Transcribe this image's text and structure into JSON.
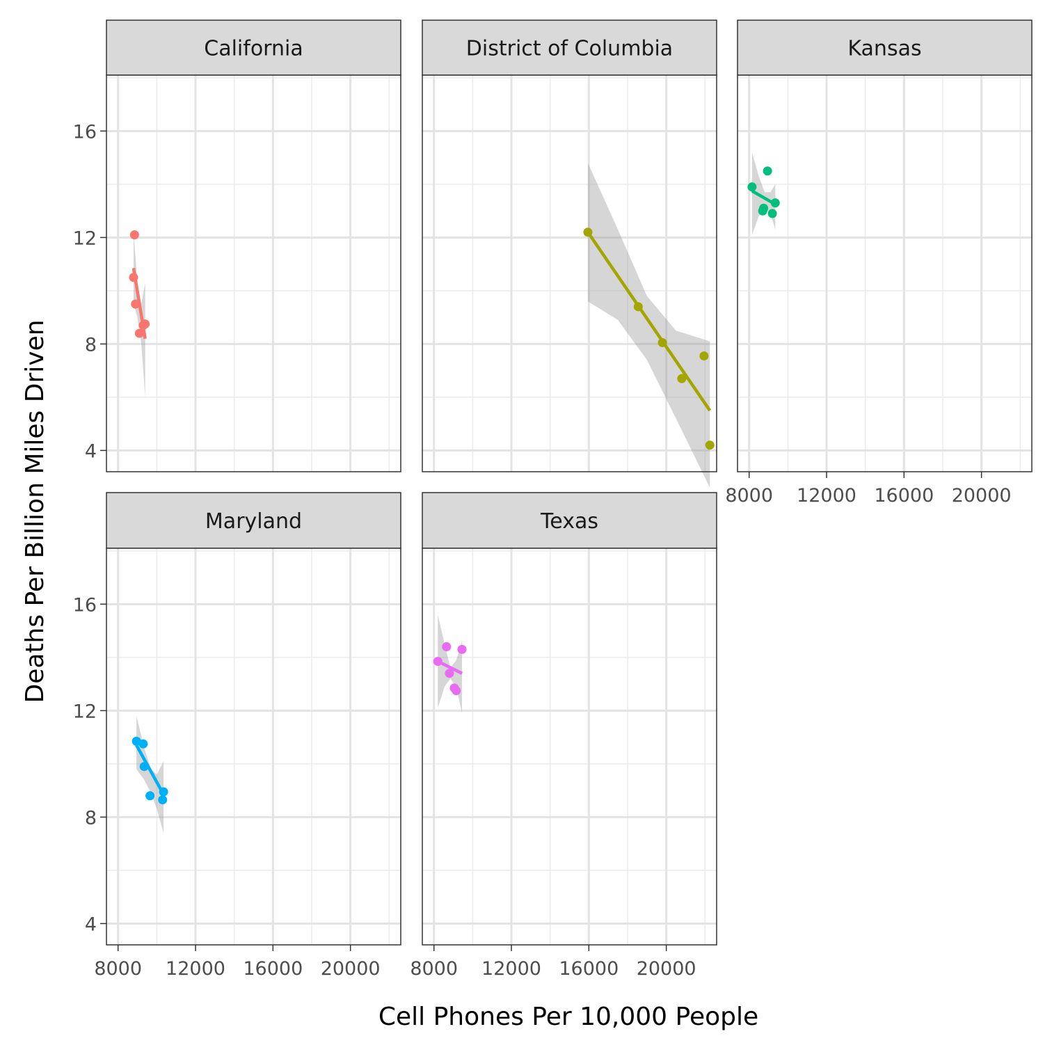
{
  "chart_data": {
    "type": "scatter",
    "xlabel": "Cell Phones Per 10,000 People",
    "ylabel": "Deaths Per Billion Miles Driven",
    "xlim": [
      7400,
      22600
    ],
    "ylim": [
      3.2,
      18.1
    ],
    "x_ticks": [
      8000,
      12000,
      16000,
      20000
    ],
    "x_tick_labels": [
      "8000",
      "12000",
      "16000",
      "20000"
    ],
    "y_ticks": [
      4,
      8,
      12,
      16
    ],
    "y_tick_labels": [
      "4",
      "8",
      "12",
      "16"
    ],
    "grid": true,
    "legend": "none",
    "facets": [
      {
        "name": "California",
        "color": "#F8766D",
        "points": [
          [
            8850,
            12.1
          ],
          [
            8800,
            10.5
          ],
          [
            8900,
            9.5
          ],
          [
            9100,
            8.4
          ],
          [
            9300,
            8.7
          ],
          [
            9400,
            8.75
          ]
        ],
        "fit": [
          [
            8800,
            10.85
          ],
          [
            9400,
            8.2
          ]
        ],
        "band": {
          "x": [
            8800,
            9000,
            9200,
            9400
          ],
          "lower": [
            9.5,
            9.0,
            8.0,
            6.0
          ],
          "upper": [
            12.2,
            10.3,
            9.5,
            10.3
          ]
        }
      },
      {
        "name": "District of Columbia",
        "color": "#A3A500",
        "points": [
          [
            15950,
            12.2
          ],
          [
            18550,
            9.4
          ],
          [
            19800,
            8.05
          ],
          [
            20800,
            6.7
          ],
          [
            21950,
            7.55
          ],
          [
            22250,
            4.2
          ]
        ],
        "fit": [
          [
            15950,
            12.2
          ],
          [
            22250,
            5.5
          ]
        ],
        "band": {
          "x": [
            15950,
            17500,
            19000,
            20500,
            22250
          ],
          "lower": [
            9.6,
            8.9,
            7.4,
            5.2,
            2.6
          ],
          "upper": [
            14.8,
            12.3,
            9.8,
            8.5,
            8.1
          ]
        }
      },
      {
        "name": "Kansas",
        "color": "#00BF7D",
        "points": [
          [
            8950,
            14.5
          ],
          [
            8150,
            13.9
          ],
          [
            9350,
            13.3
          ],
          [
            8750,
            13.1
          ],
          [
            8700,
            13.0
          ],
          [
            9200,
            12.9
          ]
        ],
        "fit": [
          [
            8150,
            13.75
          ],
          [
            9350,
            13.25
          ]
        ],
        "band": {
          "x": [
            8150,
            8500,
            8800,
            9100,
            9350
          ],
          "lower": [
            12.1,
            12.8,
            13.1,
            12.9,
            12.3
          ],
          "upper": [
            15.2,
            14.3,
            13.7,
            13.7,
            14.0
          ]
        }
      },
      {
        "name": "Maryland",
        "color": "#00B0F6",
        "points": [
          [
            8950,
            10.85
          ],
          [
            9300,
            10.75
          ],
          [
            9350,
            9.9
          ],
          [
            9650,
            8.8
          ],
          [
            10350,
            8.95
          ],
          [
            10300,
            8.65
          ]
        ],
        "fit": [
          [
            8950,
            10.7
          ],
          [
            10350,
            8.85
          ]
        ],
        "band": {
          "x": [
            8950,
            9350,
            9700,
            10000,
            10350
          ],
          "lower": [
            9.8,
            9.4,
            8.9,
            8.3,
            7.4
          ],
          "upper": [
            11.8,
            10.6,
            9.8,
            9.6,
            10.1
          ]
        }
      },
      {
        "name": "Texas",
        "color": "#E76BF3",
        "points": [
          [
            8200,
            13.85
          ],
          [
            8650,
            14.4
          ],
          [
            9450,
            14.3
          ],
          [
            8800,
            13.4
          ],
          [
            9050,
            12.85
          ],
          [
            9150,
            12.75
          ]
        ],
        "fit": [
          [
            8200,
            13.85
          ],
          [
            9450,
            13.4
          ]
        ],
        "band": {
          "x": [
            8200,
            8550,
            8850,
            9150,
            9450
          ],
          "lower": [
            12.1,
            12.9,
            13.2,
            12.9,
            11.9
          ],
          "upper": [
            15.6,
            14.5,
            13.6,
            13.9,
            14.6
          ]
        }
      }
    ]
  }
}
